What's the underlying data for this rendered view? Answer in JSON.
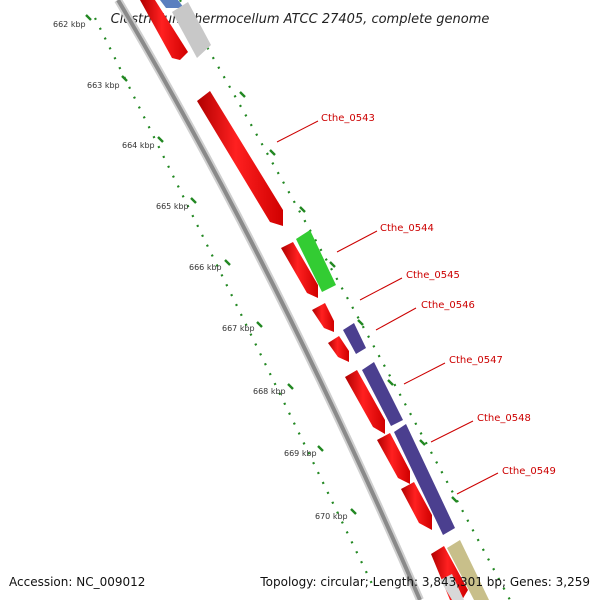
{
  "title": "Clostridium thermocellum ATCC 27405, complete genome",
  "accession": "Accession: NC_009012",
  "summary": "Topology: circular; Length: 3,843,301 bp; Genes: 3,259",
  "ruler_labels": [
    "662 kbp",
    "663 kbp",
    "664 kbp",
    "665 kbp",
    "666 kbp",
    "667 kbp",
    "668 kbp",
    "669 kbp",
    "670 kbp"
  ],
  "gene_labels": [
    "Cthe_0543",
    "Cthe_0544",
    "Cthe_0545",
    "Cthe_0546",
    "Cthe_0547",
    "Cthe_0548",
    "Cthe_0549"
  ],
  "colors": {
    "cds_forward": "#ff0000",
    "cds_green": "#33cc33",
    "cds_purple": "#4b3f8f",
    "cds_grey": "#c8c8c8",
    "cds_blue": "#5b7fbf",
    "cds_tan": "#c8bf8a",
    "backbone": "#8a8a8a",
    "ruler": "#228822",
    "label": "#cc0000"
  }
}
